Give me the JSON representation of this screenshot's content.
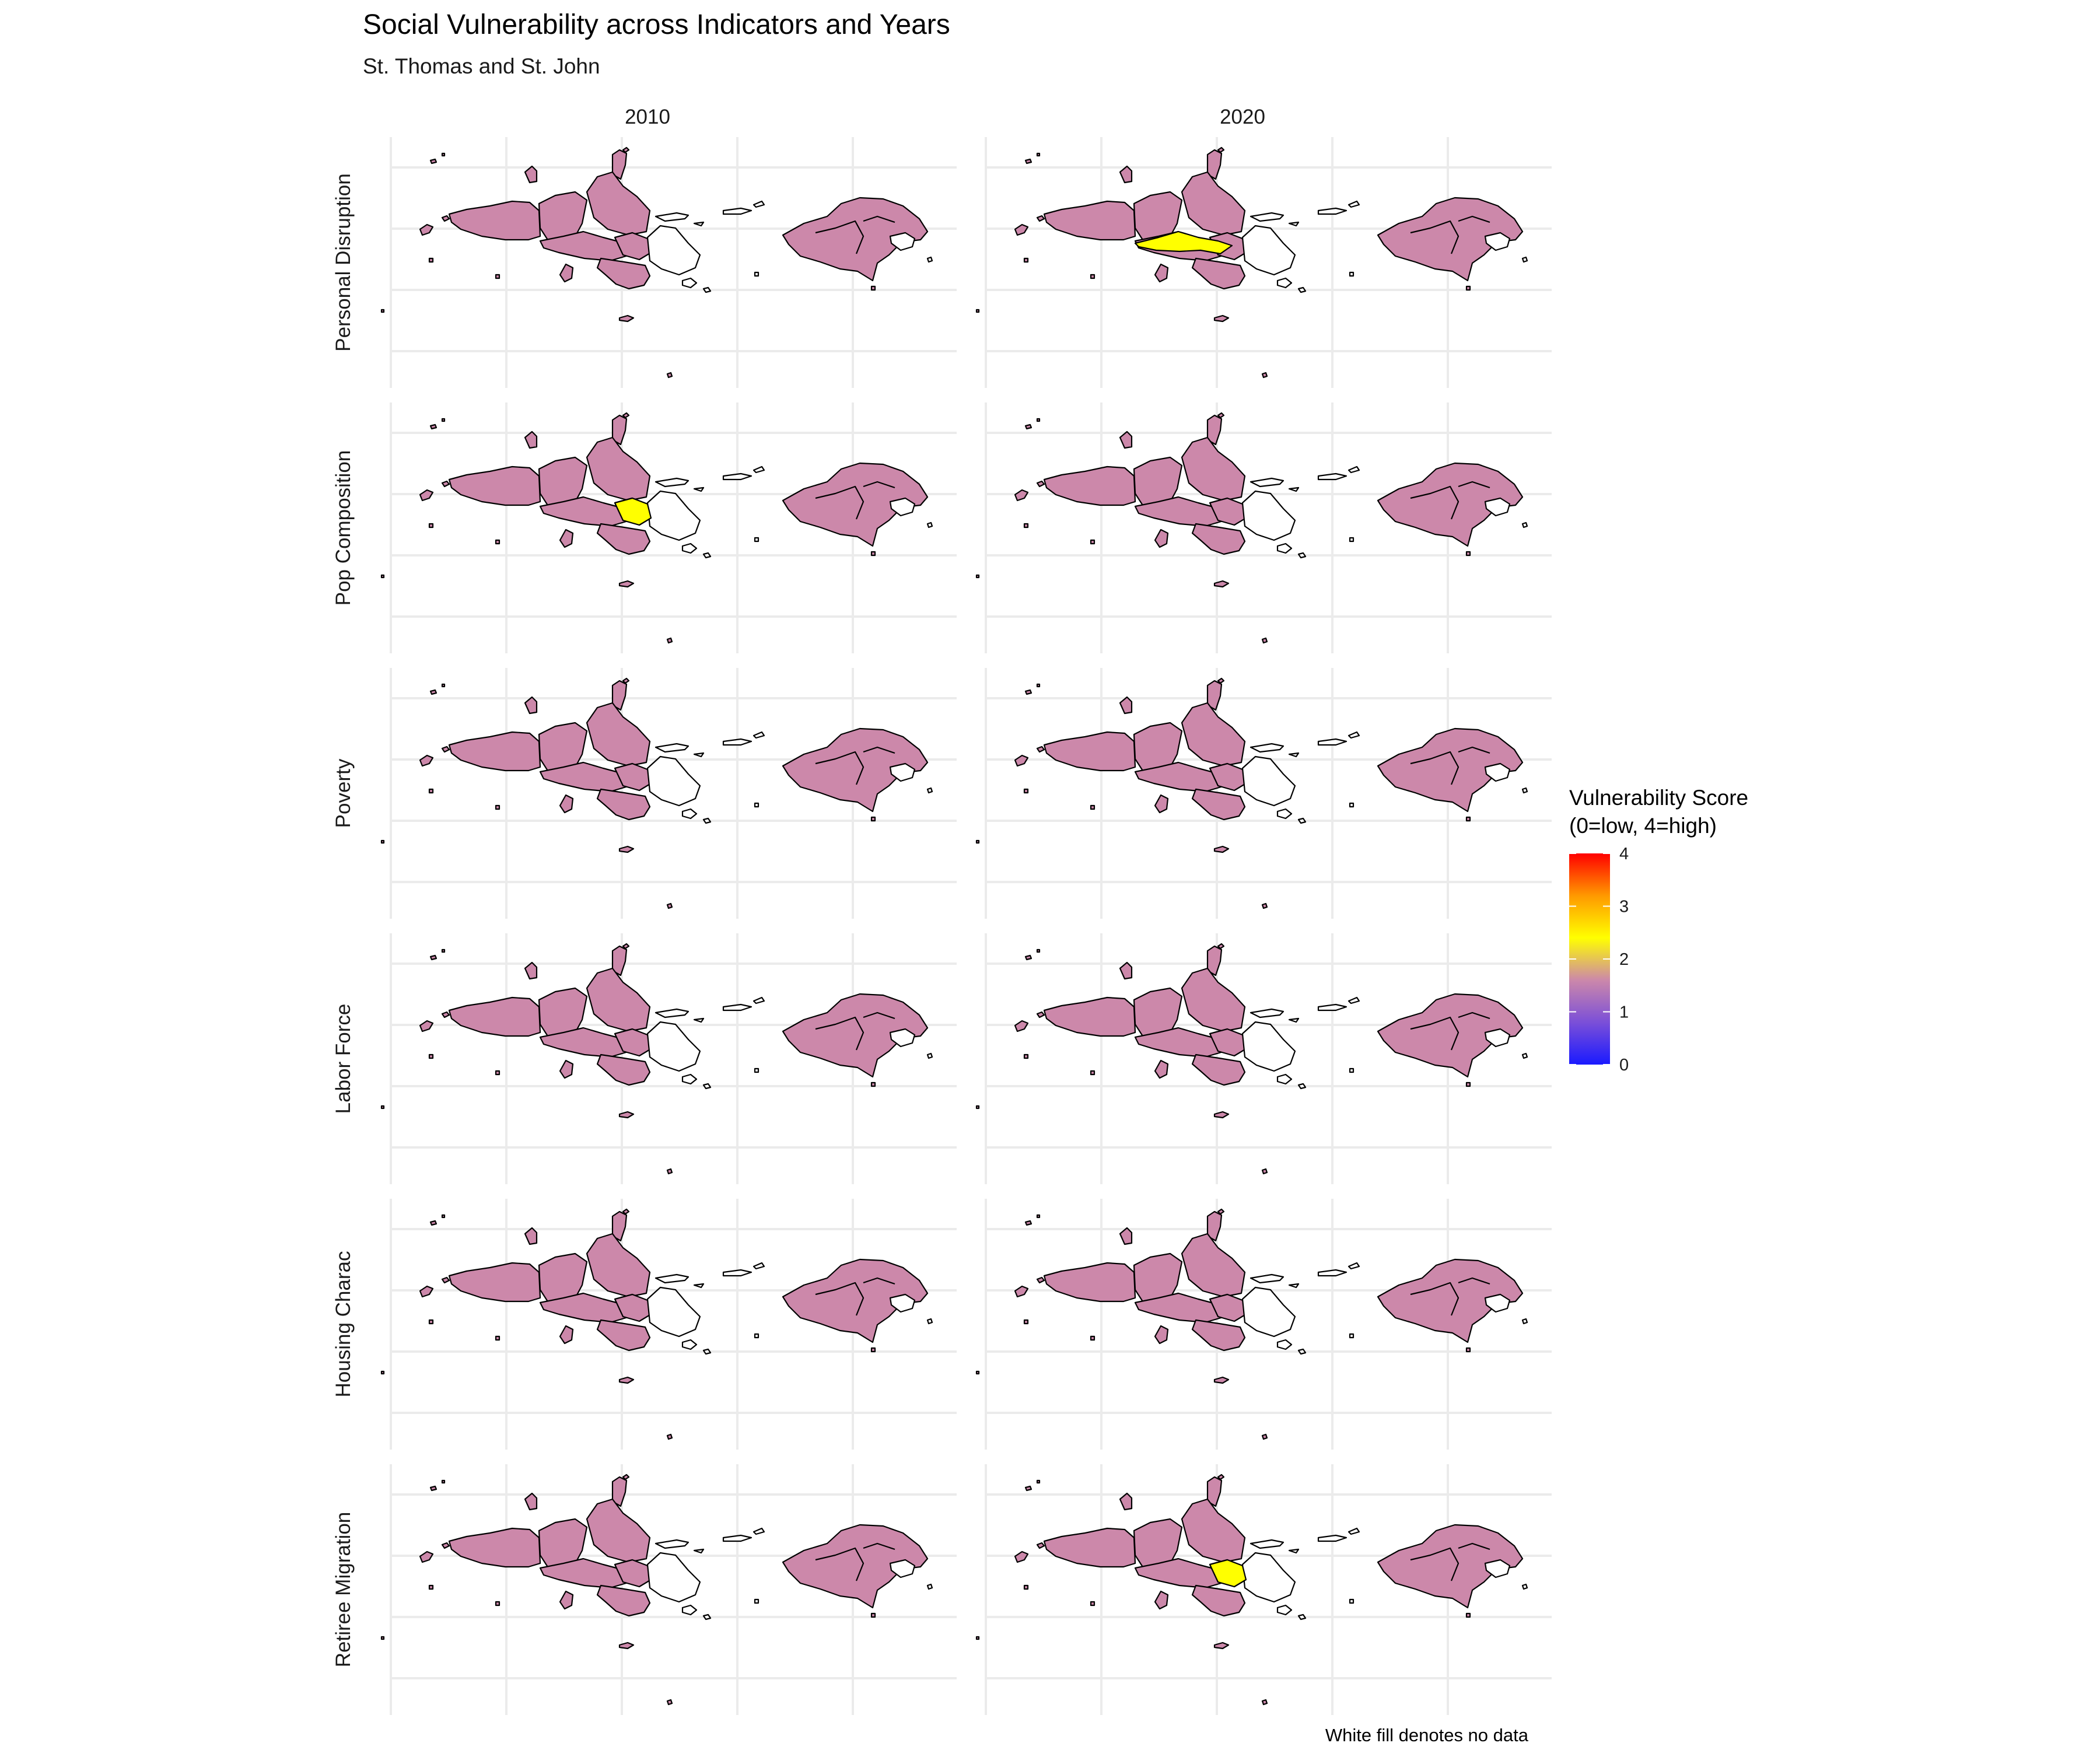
{
  "figure": {
    "title": "Social Vulnerability across Indicators and Years",
    "subtitle": "St. Thomas and St. John",
    "caption": "White fill denotes no data"
  },
  "years": [
    "2010",
    "2020"
  ],
  "indicators": [
    "Personal Disruption",
    "Pop Composition",
    "Poverty",
    "Labor Force",
    "Housing Charac",
    "Retiree Migration"
  ],
  "legend": {
    "title_line1": "Vulnerability Score",
    "title_line2": "(0=low, 4=high)",
    "ticks": [
      "0",
      "1",
      "2",
      "3",
      "4"
    ],
    "range": [
      0,
      4
    ],
    "gradient_colors": [
      "#1a1aff",
      "#7b4fd8",
      "#cc88aa",
      "#ffff00",
      "#ff9900",
      "#ff0000"
    ]
  },
  "colors": {
    "baseline_fill": "#cc88aa",
    "highlight_fill": "#ffff00",
    "no_data_fill": "#ffffff"
  },
  "highlights": [
    {
      "indicator": "Personal Disruption",
      "year": "2020",
      "region": "central-west-tract",
      "score": 2
    },
    {
      "indicator": "Pop Composition",
      "year": "2010",
      "region": "central-tract",
      "score": 2
    },
    {
      "indicator": "Retiree Migration",
      "year": "2020",
      "region": "central-tract",
      "score": 2
    }
  ],
  "baseline_score": 1
}
